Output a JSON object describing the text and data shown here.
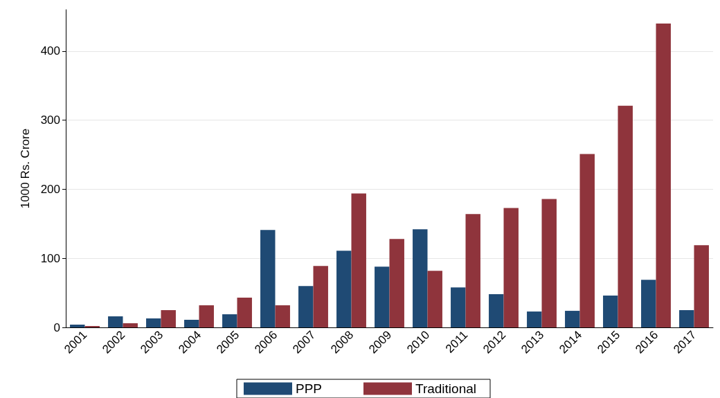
{
  "chart_data": {
    "type": "bar",
    "ylabel": "1000 Rs. Crore",
    "categories": [
      "2001",
      "2002",
      "2003",
      "2004",
      "2005",
      "2006",
      "2007",
      "2008",
      "2009",
      "2010",
      "2011",
      "2012",
      "2013",
      "2014",
      "2015",
      "2016",
      "2017"
    ],
    "series": [
      {
        "name": "PPP",
        "color": "#1f4a74",
        "values": [
          4,
          16,
          13,
          11,
          19,
          141,
          60,
          111,
          88,
          142,
          58,
          48,
          23,
          24,
          46,
          69,
          25
        ]
      },
      {
        "name": "Traditional",
        "color": "#8f343c",
        "values": [
          2,
          6,
          25,
          32,
          43,
          32,
          89,
          194,
          128,
          82,
          164,
          173,
          186,
          251,
          321,
          440,
          119
        ]
      }
    ],
    "ylim": [
      0,
      460
    ],
    "yticks": [
      0,
      100,
      200,
      300,
      400
    ],
    "grid": "y",
    "legend": "bottom"
  }
}
